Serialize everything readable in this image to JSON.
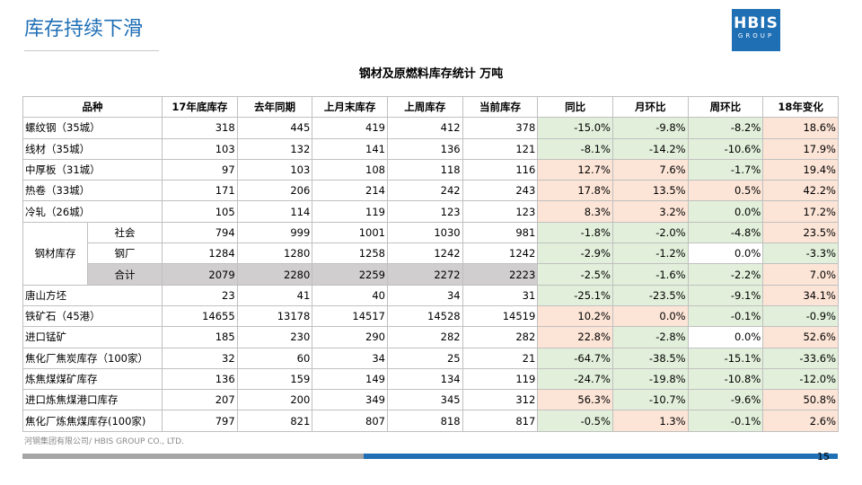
{
  "header": {
    "title": "库存持续下滑",
    "logo": {
      "main": "HBIS",
      "sub": "GROUP"
    }
  },
  "table": {
    "title": "钢材及原燃料库存统计 万吨",
    "columns": [
      "品种",
      "17年底库存",
      "去年同期",
      "上月末库存",
      "上周库存",
      "当前库存",
      "同比",
      "月环比",
      "周环比",
      "18年变化"
    ],
    "rows": [
      {
        "name": "螺纹钢（35城）",
        "cells": [
          "318",
          "445",
          "419",
          "412",
          "378",
          "-15.0%",
          "-9.8%",
          "-8.2%",
          "18.6%"
        ],
        "fills": [
          "#e2efda",
          "#e2efda",
          "#e2efda",
          "#fce4d6"
        ]
      },
      {
        "name": "线材（35城）",
        "cells": [
          "103",
          "132",
          "141",
          "136",
          "121",
          "-8.1%",
          "-14.2%",
          "-10.6%",
          "17.9%"
        ],
        "fills": [
          "#e2efda",
          "#e2efda",
          "#e2efda",
          "#fce4d6"
        ]
      },
      {
        "name": "中厚板（31城）",
        "cells": [
          "97",
          "103",
          "108",
          "118",
          "116",
          "12.7%",
          "7.6%",
          "-1.7%",
          "19.4%"
        ],
        "fills": [
          "#fce4d6",
          "#fce4d6",
          "#e2efda",
          "#fce4d6"
        ]
      },
      {
        "name": "热卷（33城）",
        "cells": [
          "171",
          "206",
          "214",
          "242",
          "243",
          "17.8%",
          "13.5%",
          "0.5%",
          "42.2%"
        ],
        "fills": [
          "#fce4d6",
          "#fce4d6",
          "#fce4d6",
          "#fce4d6"
        ]
      },
      {
        "name": "冷轧（26城）",
        "cells": [
          "105",
          "114",
          "119",
          "123",
          "123",
          "8.3%",
          "3.2%",
          "0.0%",
          "17.2%"
        ],
        "fills": [
          "#fce4d6",
          "#fce4d6",
          "#e2efda",
          "#fce4d6"
        ]
      },
      {
        "label": "钢材库存",
        "subrows": [
          {
            "name": "社会",
            "cells": [
              "794",
              "999",
              "1001",
              "1030",
              "981",
              "-1.8%",
              "-2.0%",
              "-4.8%",
              "23.5%"
            ],
            "fills": [
              "#e2efda",
              "#e2efda",
              "#e2efda",
              "#fce4d6"
            ]
          },
          {
            "name": "钢厂",
            "cells": [
              "1284",
              "1280",
              "1258",
              "1242",
              "1242",
              "-2.9%",
              "-1.2%",
              "0.0%",
              "-3.3%"
            ],
            "fills": [
              "#e2efda",
              "#e2efda",
              "#ffffff",
              "#e2efda"
            ]
          },
          {
            "name": "合计",
            "cells": [
              "2079",
              "2280",
              "2259",
              "2272",
              "2223",
              "-2.5%",
              "-1.6%",
              "-2.2%",
              "7.0%"
            ],
            "fills": [
              "#e2efda",
              "#e2efda",
              "#e2efda",
              "#fce4d6"
            ],
            "fill": "#d0cece"
          }
        ]
      },
      {
        "name": "唐山方坯",
        "cells": [
          "23",
          "41",
          "40",
          "34",
          "31",
          "-25.1%",
          "-23.5%",
          "-9.1%",
          "34.1%"
        ],
        "fills": [
          "#e2efda",
          "#e2efda",
          "#e2efda",
          "#fce4d6"
        ]
      },
      {
        "name": "铁矿石（45港）",
        "cells": [
          "14655",
          "13178",
          "14517",
          "14528",
          "14519",
          "10.2%",
          "0.0%",
          "-0.1%",
          "-0.9%"
        ],
        "fills": [
          "#fce4d6",
          "#fce4d6",
          "#e2efda",
          "#e2efda"
        ]
      },
      {
        "name": "进口锰矿",
        "cells": [
          "185",
          "230",
          "290",
          "282",
          "282",
          "22.8%",
          "-2.8%",
          "0.0%",
          "52.6%"
        ],
        "fills": [
          "#fce4d6",
          "#e2efda",
          "#ffffff",
          "#fce4d6"
        ]
      },
      {
        "name": "焦化厂焦炭库存（100家）",
        "cells": [
          "32",
          "60",
          "34",
          "25",
          "21",
          "-64.7%",
          "-38.5%",
          "-15.1%",
          "-33.6%"
        ],
        "fills": [
          "#e2efda",
          "#e2efda",
          "#e2efda",
          "#e2efda"
        ]
      },
      {
        "name": "炼焦煤煤矿库存",
        "cells": [
          "136",
          "159",
          "149",
          "134",
          "119",
          "-24.7%",
          "-19.8%",
          "-10.8%",
          "-12.0%"
        ],
        "fills": [
          "#e2efda",
          "#e2efda",
          "#e2efda",
          "#e2efda"
        ]
      },
      {
        "name": "进口炼焦煤港口库存",
        "cells": [
          "207",
          "200",
          "349",
          "345",
          "312",
          "56.3%",
          "-10.7%",
          "-9.6%",
          "50.8%"
        ],
        "fills": [
          "#fce4d6",
          "#e2efda",
          "#e2efda",
          "#fce4d6"
        ]
      },
      {
        "name": "焦化厂炼焦煤库存(100家)",
        "cells": [
          "797",
          "821",
          "807",
          "818",
          "817",
          "-0.5%",
          "1.3%",
          "-0.1%",
          "2.6%"
        ],
        "fills": [
          "#e2efda",
          "#fce4d6",
          "#e2efda",
          "#fce4d6"
        ]
      }
    ]
  },
  "footer": {
    "company": "河钢集团有限公司/ HBIS GROUP CO., LTD.",
    "page": "15"
  }
}
